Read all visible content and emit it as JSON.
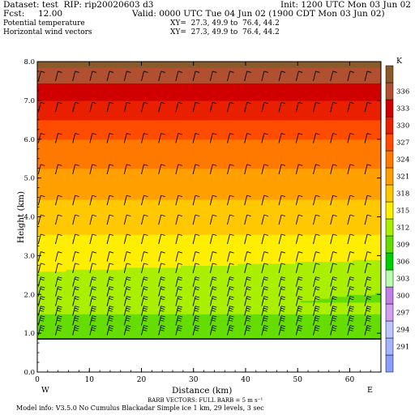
{
  "header": {
    "dataset_line": "Dataset: test  RIP: rip20020603 d3",
    "init_line": "Init: 1200 UTC Mon 03 Jun 02",
    "fcst_line": "Fcst:     12.00",
    "valid_line": "Valid: 0000 UTC Tue 04 Jun 02 (1900 CDT Mon 03 Jun 02)",
    "field1": "Potential temperature",
    "field1_xy": "XY=  27.3, 49.9 to  76.4, 44.2",
    "field2": "Horizontal wind vectors",
    "field2_xy": "XY=  27.3, 49.9 to  76.4, 44.2"
  },
  "footer": {
    "barb_note": "BARB VECTORS:  FULL BARB = 5 m s⁻¹",
    "model_info": "Model info: V3.5.0 No Cumulus Blackadar  Simple ice    1 km,  29 levels,     3 sec"
  },
  "colors": {
    "terrain_outline": "#000000",
    "below_ground": "#ffffff"
  },
  "chart_data": {
    "type": "heatmap",
    "title": "Potential temperature / Horizontal wind vectors",
    "xlabel": "Distance (km)",
    "ylabel": "Height (km)",
    "xlim": [
      0,
      66
    ],
    "ylim": [
      0,
      8
    ],
    "x_ticks": [
      "0",
      "10",
      "20",
      "30",
      "40",
      "50",
      "60"
    ],
    "y_ticks": [
      "0.0",
      "1.0",
      "2.0",
      "3.0",
      "4.0",
      "5.0",
      "6.0",
      "7.0",
      "8.0"
    ],
    "left_end_label": "W",
    "right_end_label": "E",
    "colorbar": {
      "unit": "K",
      "levels": [
        291,
        294,
        297,
        300,
        303,
        306,
        309,
        312,
        315,
        318,
        321,
        324,
        327,
        330,
        333,
        336
      ],
      "colors": [
        "#8c9cff",
        "#a6b4ff",
        "#bcc6ff",
        "#d2a0f0",
        "#c080e8",
        "#b8ffb0",
        "#00d000",
        "#66dd00",
        "#aaee00",
        "#ffee00",
        "#ffc800",
        "#ffa000",
        "#ff7800",
        "#ff4c00",
        "#e82000",
        "#d00000",
        "#b05030",
        "#8b5a2b"
      ]
    },
    "terrain_height_km": 0.85,
    "theta_profile": [
      {
        "z": 1.0,
        "theta": 308.5
      },
      {
        "z": 2.0,
        "theta": 309.5
      },
      {
        "z": 2.5,
        "theta": 311.0
      },
      {
        "z": 3.0,
        "theta": 313.0
      },
      {
        "z": 4.0,
        "theta": 316.5
      },
      {
        "z": 5.0,
        "theta": 320.0
      },
      {
        "z": 6.0,
        "theta": 324.0
      },
      {
        "z": 7.0,
        "theta": 330.0
      },
      {
        "z": 8.0,
        "theta": 337.0
      }
    ],
    "wind_barbs": {
      "x_spacing_km": 3.3,
      "levels_km": [
        0.95,
        1.2,
        1.45,
        1.7,
        1.95,
        2.2,
        2.55,
        2.85,
        3.3,
        3.8,
        4.3,
        5.1,
        5.9,
        6.7,
        7.5
      ],
      "barbs_per_level": [
        10,
        9,
        8,
        7,
        6,
        5,
        4,
        3,
        3,
        3,
        3,
        4,
        4,
        4,
        4
      ]
    }
  }
}
